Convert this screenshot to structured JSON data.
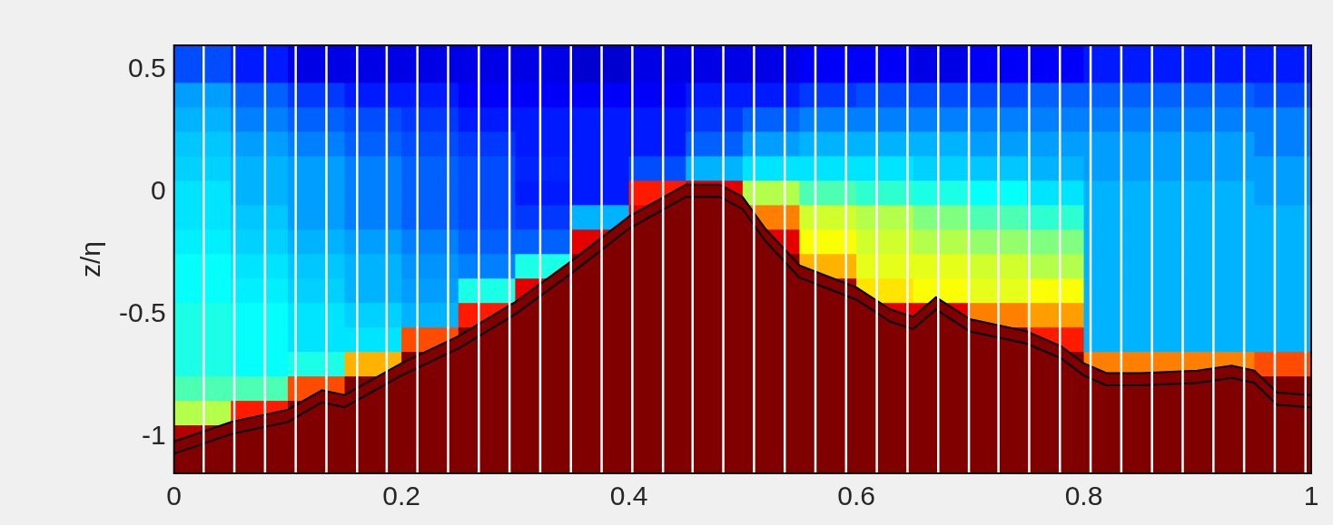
{
  "chart_data": {
    "type": "heatmap",
    "y_label": "z/η",
    "xlim": [
      0,
      1
    ],
    "ylim": [
      -1.15,
      0.6
    ],
    "xticks": [
      0,
      0.2,
      0.4,
      0.6,
      0.8,
      1
    ],
    "yticks": [
      -1,
      -0.5,
      0,
      0.5
    ],
    "grid": false,
    "field": {
      "x_edges": [
        0,
        0.05,
        0.1,
        0.15,
        0.2,
        0.25,
        0.3,
        0.35,
        0.4,
        0.45,
        0.5,
        0.55,
        0.6,
        0.65,
        0.7,
        0.75,
        0.8,
        0.85,
        0.9,
        0.95,
        1
      ],
      "z_edges": [
        -1.15,
        -1.05,
        -0.95,
        -0.85,
        -0.75,
        -0.65,
        -0.55,
        -0.45,
        -0.35,
        -0.25,
        -0.15,
        -0.05,
        0.05,
        0.15,
        0.25,
        0.35,
        0.45,
        0.6
      ],
      "range": [
        0,
        1
      ],
      "values": [
        [
          1,
          1,
          1,
          1,
          1,
          1,
          1,
          1,
          1,
          1,
          1,
          1,
          1,
          1,
          1,
          1,
          1,
          1,
          1,
          1
        ],
        [
          0.95,
          1,
          1,
          1,
          1,
          1,
          1,
          1,
          1,
          1,
          1,
          1,
          1,
          1,
          1,
          1,
          1,
          1,
          1,
          1
        ],
        [
          0.55,
          0.85,
          1,
          1,
          1,
          1,
          1,
          1,
          1,
          1,
          1,
          1,
          1,
          1,
          1,
          1,
          1,
          1,
          1,
          1
        ],
        [
          0.45,
          0.45,
          0.8,
          1,
          1,
          1,
          1,
          1,
          1,
          1,
          1,
          1,
          1,
          1,
          1,
          1,
          1,
          1,
          1,
          1
        ],
        [
          0.4,
          0.38,
          0.4,
          0.7,
          1,
          1,
          1,
          1,
          1,
          1,
          1,
          1,
          1,
          1,
          1,
          1,
          0.75,
          0.75,
          0.75,
          0.8
        ],
        [
          0.4,
          0.38,
          0.35,
          0.35,
          0.8,
          1,
          1,
          1,
          1,
          1,
          1,
          1,
          1,
          1,
          1,
          0.85,
          0.3,
          0.3,
          0.3,
          0.3
        ],
        [
          0.4,
          0.38,
          0.35,
          0.33,
          0.3,
          0.85,
          1,
          1,
          1,
          1,
          1,
          1,
          0.9,
          0.9,
          0.75,
          0.72,
          0.3,
          0.3,
          0.3,
          0.3
        ],
        [
          0.38,
          0.36,
          0.33,
          0.3,
          0.28,
          0.4,
          0.9,
          1,
          1,
          1,
          1,
          0.95,
          0.65,
          0.62,
          0.6,
          0.62,
          0.3,
          0.3,
          0.3,
          0.3
        ],
        [
          0.38,
          0.35,
          0.32,
          0.3,
          0.27,
          0.25,
          0.4,
          1,
          1,
          1,
          1,
          0.7,
          0.6,
          0.6,
          0.58,
          0.55,
          0.3,
          0.3,
          0.3,
          0.3
        ],
        [
          0.36,
          0.33,
          0.3,
          0.28,
          0.25,
          0.22,
          0.22,
          0.9,
          1,
          1,
          0.9,
          0.62,
          0.58,
          0.55,
          0.52,
          0.5,
          0.3,
          0.3,
          0.3,
          0.3
        ],
        [
          0.35,
          0.32,
          0.28,
          0.25,
          0.22,
          0.2,
          0.18,
          0.3,
          0.9,
          1,
          0.75,
          0.58,
          0.55,
          0.5,
          0.45,
          0.42,
          0.3,
          0.3,
          0.3,
          0.3
        ],
        [
          0.35,
          0.3,
          0.28,
          0.25,
          0.22,
          0.2,
          0.15,
          0.15,
          0.85,
          0.9,
          0.55,
          0.45,
          0.42,
          0.4,
          0.38,
          0.35,
          0.3,
          0.3,
          0.3,
          0.28
        ],
        [
          0.33,
          0.3,
          0.28,
          0.25,
          0.22,
          0.2,
          0.16,
          0.15,
          0.2,
          0.3,
          0.35,
          0.35,
          0.35,
          0.33,
          0.32,
          0.3,
          0.28,
          0.28,
          0.28,
          0.28
        ],
        [
          0.32,
          0.28,
          0.25,
          0.22,
          0.2,
          0.18,
          0.15,
          0.15,
          0.15,
          0.22,
          0.28,
          0.3,
          0.3,
          0.3,
          0.28,
          0.28,
          0.28,
          0.28,
          0.28,
          0.25
        ],
        [
          0.3,
          0.25,
          0.22,
          0.2,
          0.18,
          0.15,
          0.15,
          0.15,
          0.15,
          0.18,
          0.22,
          0.25,
          0.25,
          0.25,
          0.25,
          0.25,
          0.25,
          0.25,
          0.25,
          0.25
        ],
        [
          0.28,
          0.22,
          0.18,
          0.15,
          0.15,
          0.12,
          0.12,
          0.12,
          0.12,
          0.15,
          0.15,
          0.18,
          0.2,
          0.2,
          0.2,
          0.22,
          0.22,
          0.22,
          0.22,
          0.2
        ],
        [
          0.2,
          0.15,
          0.1,
          0.1,
          0.1,
          0.1,
          0.1,
          0.08,
          0.1,
          0.1,
          0.1,
          0.12,
          0.12,
          0.1,
          0.12,
          0.12,
          0.15,
          0.15,
          0.15,
          0.15
        ]
      ]
    },
    "bed": {
      "x": [
        0,
        0.05,
        0.1,
        0.13,
        0.15,
        0.2,
        0.25,
        0.3,
        0.35,
        0.4,
        0.45,
        0.48,
        0.5,
        0.52,
        0.55,
        0.6,
        0.63,
        0.65,
        0.67,
        0.7,
        0.75,
        0.78,
        0.8,
        0.82,
        0.85,
        0.9,
        0.93,
        0.95,
        0.97,
        1
      ],
      "values": [
        -1.02,
        -0.94,
        -0.89,
        -0.81,
        -0.83,
        -0.7,
        -0.59,
        -0.45,
        -0.28,
        -0.1,
        0.03,
        0.03,
        -0.02,
        -0.15,
        -0.3,
        -0.39,
        -0.48,
        -0.51,
        -0.43,
        -0.52,
        -0.57,
        -0.63,
        -0.7,
        -0.74,
        -0.74,
        -0.73,
        -0.71,
        -0.73,
        -0.82,
        -0.83
      ],
      "color": "#800000"
    },
    "contours": [
      {
        "x": [
          0,
          0.05,
          0.1,
          0.13,
          0.15,
          0.2,
          0.25,
          0.3,
          0.35,
          0.4,
          0.45,
          0.48,
          0.5,
          0.52,
          0.55,
          0.6,
          0.63,
          0.65,
          0.67,
          0.7,
          0.75,
          0.78,
          0.8,
          0.82,
          0.85,
          0.9,
          0.93,
          0.95,
          0.97,
          1
        ],
        "values": [
          -1.07,
          -0.99,
          -0.94,
          -0.86,
          -0.88,
          -0.75,
          -0.64,
          -0.5,
          -0.33,
          -0.15,
          -0.02,
          -0.02,
          -0.07,
          -0.2,
          -0.35,
          -0.44,
          -0.53,
          -0.56,
          -0.48,
          -0.57,
          -0.62,
          -0.68,
          -0.75,
          -0.79,
          -0.79,
          -0.78,
          -0.76,
          -0.78,
          -0.87,
          -0.88
        ],
        "color": "#000000"
      }
    ],
    "profiles": {
      "x": [
        0.026,
        0.053,
        0.08,
        0.107,
        0.134,
        0.161,
        0.187,
        0.214,
        0.241,
        0.268,
        0.295,
        0.322,
        0.349,
        0.376,
        0.403,
        0.43,
        0.456,
        0.483,
        0.51,
        0.537,
        0.564,
        0.591,
        0.618,
        0.645,
        0.672,
        0.699,
        0.725,
        0.752,
        0.779,
        0.806,
        0.833,
        0.86,
        0.887,
        0.914,
        0.941,
        0.968,
        0.995
      ],
      "color": "#ffffff"
    }
  }
}
